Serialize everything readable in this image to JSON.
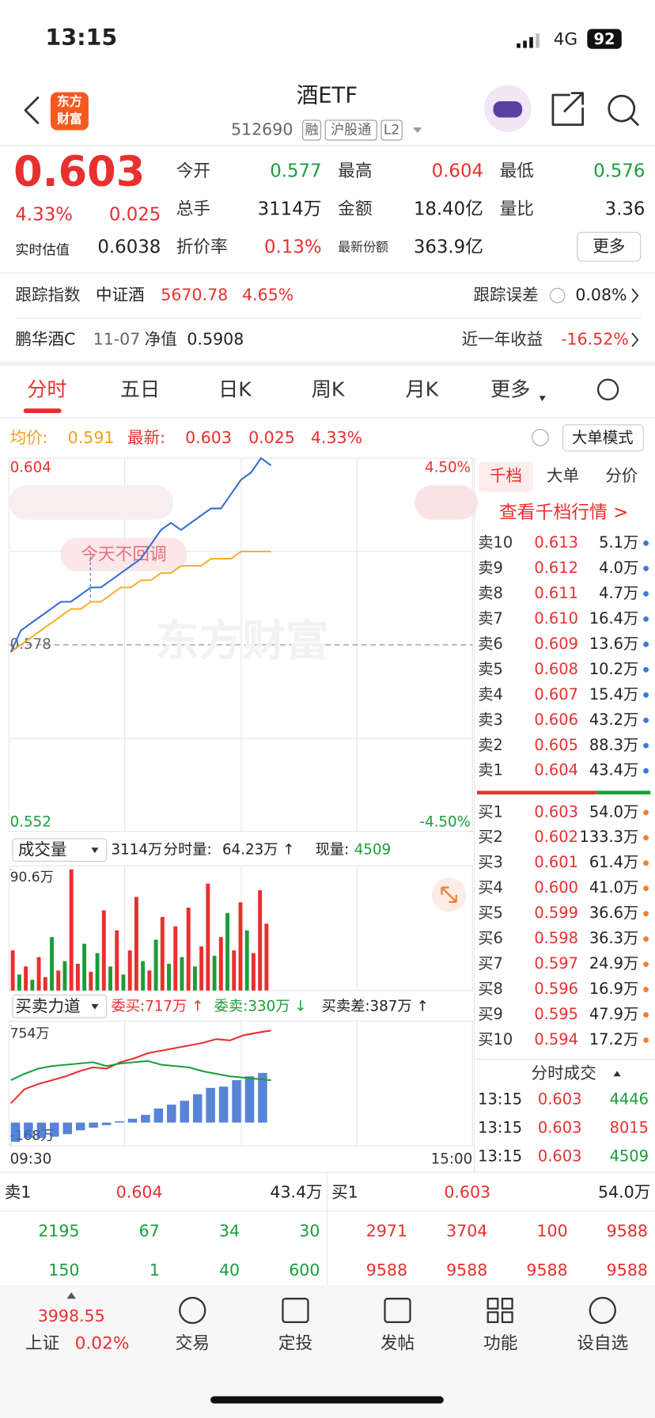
{
  "status_bar": {
    "time": "13:15",
    "network": "4G",
    "battery": "92"
  },
  "header": {
    "logo": [
      "东方",
      "财富"
    ],
    "title": "酒ETF",
    "code": "512690",
    "tags": [
      "融",
      "沪股通",
      "L2"
    ]
  },
  "quote": {
    "price": "0.603",
    "change_pct": "4.33%",
    "change": "0.025",
    "estimate_label": "实时估值",
    "estimate": "0.6038",
    "fields": [
      [
        "今开",
        "0.577"
      ],
      [
        "最高",
        "0.604"
      ],
      [
        "最低",
        "0.576"
      ],
      [
        "总手",
        "3114万"
      ],
      [
        "金额",
        "18.40亿"
      ],
      [
        "量比",
        "3.36"
      ],
      [
        "折价率",
        "0.13%"
      ],
      [
        "最新份额",
        "363.9亿"
      ]
    ],
    "more": "更多"
  },
  "tracking": {
    "label": "跟踪指数",
    "index": "中证酒",
    "value": "5670.78",
    "pct": "4.65%",
    "error_label": "跟踪误差",
    "error": "0.08%"
  },
  "fund": {
    "name": "鹏华酒C",
    "date": "11-07",
    "nav_label": "净值",
    "nav": "0.5908",
    "return_label": "近一年收益",
    "return": "-16.52%"
  },
  "tabs": [
    "分时",
    "五日",
    "日K",
    "周K",
    "月K",
    "更多"
  ],
  "summary": {
    "avg_label": "均价:",
    "avg": "0.591",
    "last_label": "最新:",
    "last": "0.603",
    "change": "0.025",
    "pct": "4.33%",
    "mode": "大单模式"
  },
  "annotation": "今天不回调",
  "watermark": "东方财富",
  "volume_bar": {
    "label": "成交量",
    "total": "3114万",
    "minute_label": "分时量:",
    "minute": "64.23万 ↑",
    "now_label": "现量:",
    "now": "4509"
  },
  "force_bar": {
    "label": "买卖力道",
    "buy": "委买:717万 ↑",
    "sell": "委卖:330万 ↓",
    "diff": "买卖差:387万 ↑"
  },
  "chart_data": [
    {
      "type": "line",
      "ylim": [
        0.552,
        0.604
      ],
      "yticks": [
        0.604,
        0.578,
        0.552
      ],
      "y2lim": [
        -4.5,
        4.5
      ],
      "y2ticks": [
        {
          "value": 4.5,
          "label": "4.50%"
        },
        {
          "value": -4.5,
          "label": "-4.50%"
        }
      ],
      "series": [
        {
          "name": "最新",
          "color": "#2f6fd0",
          "values": [
            0.577,
            0.58,
            0.581,
            0.582,
            0.583,
            0.584,
            0.584,
            0.585,
            0.586,
            0.586,
            0.587,
            0.588,
            0.589,
            0.59,
            0.592,
            0.594,
            0.595,
            0.594,
            0.595,
            0.596,
            0.597,
            0.597,
            0.599,
            0.601,
            0.602,
            0.604,
            0.603
          ]
        },
        {
          "name": "均价",
          "color": "#f5b030",
          "values": [
            0.577,
            0.578,
            0.579,
            0.58,
            0.581,
            0.582,
            0.583,
            0.583,
            0.584,
            0.584,
            0.585,
            0.586,
            0.586,
            0.587,
            0.587,
            0.588,
            0.588,
            0.589,
            0.589,
            0.589,
            0.59,
            0.59,
            0.59,
            0.591,
            0.591,
            0.591,
            0.591
          ]
        }
      ]
    },
    {
      "type": "bar",
      "ylim": [
        0,
        90.6
      ],
      "yticks": [
        {
          "value": 90.6,
          "label": "90.6万"
        }
      ],
      "values": [
        30,
        12,
        18,
        8,
        25,
        10,
        40,
        15,
        22,
        90.6,
        20,
        35,
        14,
        28,
        60,
        18,
        45,
        12,
        30,
        70,
        22,
        15,
        38,
        55,
        20,
        48,
        25,
        62,
        18,
        33,
        80,
        26,
        40,
        58,
        30,
        66,
        45,
        28,
        75,
        50
      ],
      "colors": [
        "#e8302e",
        "#1a9e3a",
        "#e8302e",
        "#1a9e3a",
        "#e8302e",
        "#e8302e",
        "#1a9e3a",
        "#e8302e",
        "#1a9e3a",
        "#e8302e",
        "#e8302e",
        "#1a9e3a",
        "#e8302e",
        "#1a9e3a",
        "#e8302e",
        "#1a9e3a",
        "#e8302e",
        "#1a9e3a",
        "#e8302e",
        "#e8302e",
        "#1a9e3a",
        "#e8302e",
        "#1a9e3a",
        "#e8302e",
        "#1a9e3a",
        "#e8302e",
        "#1a9e3a",
        "#e8302e",
        "#1a9e3a",
        "#e8302e",
        "#e8302e",
        "#1a9e3a",
        "#e8302e",
        "#1a9e3a",
        "#e8302e",
        "#e8302e",
        "#1a9e3a",
        "#e8302e",
        "#e8302e",
        "#e8302e"
      ]
    },
    {
      "type": "line",
      "ylim": [
        -168,
        754
      ],
      "yticks": [
        {
          "value": 754,
          "label": "754万"
        },
        {
          "value": -168,
          "label": "-168万"
        }
      ],
      "x_labels": [
        "09:30",
        "15:00"
      ],
      "series": [
        {
          "name": "委买",
          "color": "#e8302e",
          "values": [
            150,
            260,
            300,
            330,
            360,
            400,
            430,
            420,
            470,
            500,
            540,
            560,
            580,
            600,
            620,
            650,
            640,
            680,
            700,
            717
          ]
        },
        {
          "name": "委卖",
          "color": "#1a9e3a",
          "values": [
            330,
            380,
            420,
            440,
            450,
            460,
            470,
            440,
            460,
            470,
            480,
            450,
            440,
            430,
            400,
            380,
            360,
            350,
            340,
            330
          ]
        },
        {
          "name": "买卖差",
          "type": "bar",
          "color": "#3a6fd0",
          "values": [
            -150,
            -120,
            -120,
            -110,
            -90,
            -60,
            -40,
            -20,
            10,
            30,
            60,
            110,
            140,
            170,
            220,
            270,
            280,
            330,
            360,
            387
          ]
        }
      ]
    }
  ],
  "order_book": {
    "tabs": [
      "千档",
      "大单",
      "分价"
    ],
    "link": "查看千档行情 >",
    "sell": [
      [
        "卖10",
        "0.613",
        "5.1万"
      ],
      [
        "卖9",
        "0.612",
        "4.0万"
      ],
      [
        "卖8",
        "0.611",
        "4.7万"
      ],
      [
        "卖7",
        "0.610",
        "16.4万"
      ],
      [
        "卖6",
        "0.609",
        "13.6万"
      ],
      [
        "卖5",
        "0.608",
        "10.2万"
      ],
      [
        "卖4",
        "0.607",
        "15.4万"
      ],
      [
        "卖3",
        "0.606",
        "43.2万"
      ],
      [
        "卖2",
        "0.605",
        "88.3万"
      ],
      [
        "卖1",
        "0.604",
        "43.4万"
      ]
    ],
    "buy": [
      [
        "买1",
        "0.603",
        "54.0万"
      ],
      [
        "买2",
        "0.602",
        "133.3万"
      ],
      [
        "买3",
        "0.601",
        "61.4万"
      ],
      [
        "买4",
        "0.600",
        "41.0万"
      ],
      [
        "买5",
        "0.599",
        "36.6万"
      ],
      [
        "买6",
        "0.598",
        "36.3万"
      ],
      [
        "买7",
        "0.597",
        "24.9万"
      ],
      [
        "买8",
        "0.596",
        "16.9万"
      ],
      [
        "买9",
        "0.595",
        "47.9万"
      ],
      [
        "买10",
        "0.594",
        "17.2万"
      ]
    ]
  },
  "trades": {
    "title": "分时成交",
    "rows": [
      [
        "13:15",
        "0.603",
        "4446"
      ],
      [
        "13:15",
        "0.603",
        "8015"
      ],
      [
        "13:15",
        "0.603",
        "4509"
      ]
    ]
  },
  "depth": {
    "sell": {
      "label": "卖1",
      "price": "0.604",
      "volume": "43.4万",
      "trades": [
        [
          "2195",
          "67",
          "34",
          "30"
        ],
        [
          "150",
          "1",
          "40",
          "600"
        ]
      ]
    },
    "buy": {
      "label": "买1",
      "price": "0.603",
      "volume": "54.0万",
      "trades": [
        [
          "2971",
          "3704",
          "100",
          "9588"
        ],
        [
          "9588",
          "9588",
          "9588",
          "9588"
        ]
      ]
    }
  },
  "bottom_nav": {
    "index_value": "3998.55",
    "index_name": "上证",
    "index_pct": "0.02%",
    "items": [
      "交易",
      "定投",
      "发帖",
      "功能",
      "设自选"
    ]
  }
}
